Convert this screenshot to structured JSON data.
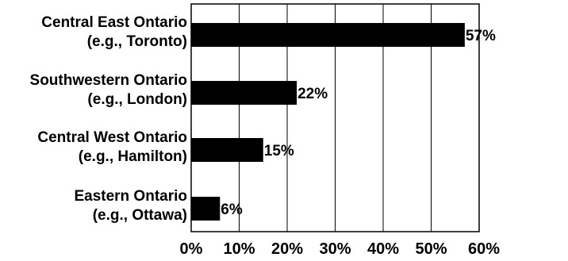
{
  "chart_data": {
    "type": "bar",
    "orientation": "horizontal",
    "categories": [
      [
        "Central East Ontario",
        "(e.g., Toronto)"
      ],
      [
        "Southwestern Ontario",
        "(e.g., London)"
      ],
      [
        "Central West Ontario",
        "(e.g., Hamilton)"
      ],
      [
        "Eastern Ontario",
        "(e.g., Ottawa)"
      ]
    ],
    "values": [
      57,
      22,
      15,
      6
    ],
    "data_labels": [
      "57%",
      "22%",
      "15%",
      "6%"
    ],
    "xlim": [
      0,
      60
    ],
    "x_ticks": [
      0,
      10,
      20,
      30,
      40,
      50,
      60
    ],
    "x_tick_labels": [
      "0%",
      "10%",
      "20%",
      "30%",
      "40%",
      "50%",
      "60%"
    ],
    "grid": "vertical",
    "legend": "none",
    "bar_color": "#000000",
    "grid_color": "#000000"
  }
}
